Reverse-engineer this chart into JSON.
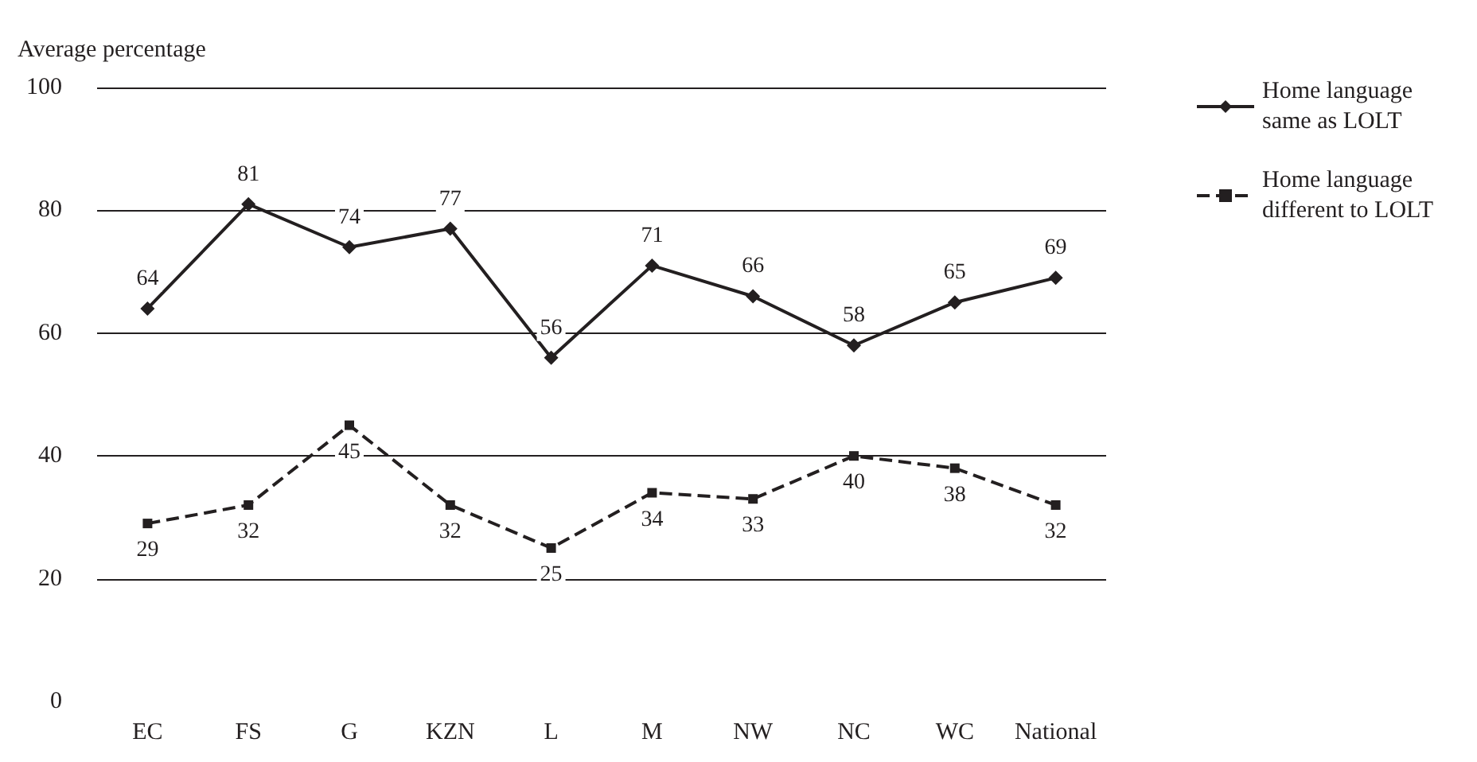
{
  "chart_data": {
    "type": "line",
    "ylabel": "Average percentage",
    "categories": [
      "EC",
      "FS",
      "G",
      "KZN",
      "L",
      "M",
      "NW",
      "NC",
      "WC",
      "National"
    ],
    "series": [
      {
        "name": "Home language same as LOLT",
        "color": "#231f20",
        "marker": "diamond",
        "line_style": "solid",
        "values": [
          64,
          81,
          74,
          77,
          56,
          71,
          66,
          58,
          65,
          69
        ]
      },
      {
        "name": "Home language different to LOLT",
        "color": "#231f20",
        "marker": "square",
        "line_style": "dashed",
        "values": [
          29,
          32,
          45,
          32,
          25,
          34,
          33,
          40,
          38,
          32
        ]
      }
    ],
    "ylim": [
      0,
      100
    ],
    "yticks": [
      0,
      20,
      40,
      60,
      80,
      100
    ],
    "grid": "y",
    "legend": "top right",
    "data_labels": true
  }
}
